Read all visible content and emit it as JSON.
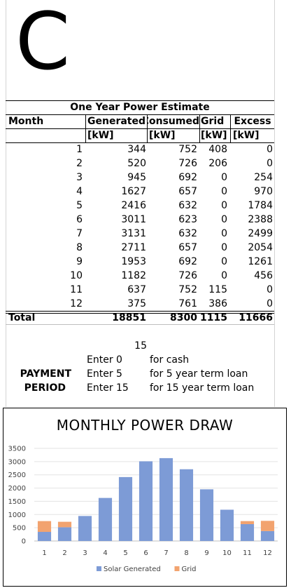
{
  "logo_letter": "C",
  "table": {
    "title": "One Year Power Estimate",
    "headers": [
      "Month",
      "Generated",
      "Consumed",
      "Grid",
      "Excess"
    ],
    "units": [
      "",
      "[kW]",
      "[kW]",
      "[kW]",
      "[kW]"
    ],
    "rows": [
      {
        "month": "1",
        "generated": "344",
        "consumed": "752",
        "grid": "408",
        "excess": "0"
      },
      {
        "month": "2",
        "generated": "520",
        "consumed": "726",
        "grid": "206",
        "excess": "0"
      },
      {
        "month": "3",
        "generated": "945",
        "consumed": "692",
        "grid": "0",
        "excess": "254"
      },
      {
        "month": "4",
        "generated": "1627",
        "consumed": "657",
        "grid": "0",
        "excess": "970"
      },
      {
        "month": "5",
        "generated": "2416",
        "consumed": "632",
        "grid": "0",
        "excess": "1784"
      },
      {
        "month": "6",
        "generated": "3011",
        "consumed": "623",
        "grid": "0",
        "excess": "2388"
      },
      {
        "month": "7",
        "generated": "3131",
        "consumed": "632",
        "grid": "0",
        "excess": "2499"
      },
      {
        "month": "8",
        "generated": "2711",
        "consumed": "657",
        "grid": "0",
        "excess": "2054"
      },
      {
        "month": "9",
        "generated": "1953",
        "consumed": "692",
        "grid": "0",
        "excess": "1261"
      },
      {
        "month": "10",
        "generated": "1182",
        "consumed": "726",
        "grid": "0",
        "excess": "456"
      },
      {
        "month": "11",
        "generated": "637",
        "consumed": "752",
        "grid": "115",
        "excess": "0"
      },
      {
        "month": "12",
        "generated": "375",
        "consumed": "761",
        "grid": "386",
        "excess": "0"
      }
    ],
    "total": {
      "label": "Total",
      "generated": "18851",
      "consumed": "8300",
      "grid": "1115",
      "excess": "11666"
    }
  },
  "payment": {
    "value": "15",
    "label_line1": "PAYMENT",
    "label_line2": "PERIOD",
    "options": [
      {
        "enter": "Enter 0",
        "desc": "for cash"
      },
      {
        "enter": "Enter 5",
        "desc": "for 5 year term loan"
      },
      {
        "enter": "Enter 15",
        "desc": "for 15 year term loan"
      }
    ]
  },
  "chart_data": {
    "type": "bar",
    "stacked": true,
    "title": "MONTHLY POWER DRAW",
    "categories": [
      "1",
      "2",
      "3",
      "4",
      "5",
      "6",
      "7",
      "8",
      "9",
      "10",
      "11",
      "12"
    ],
    "series": [
      {
        "name": "Solar Generated",
        "color": "#7d9bd6",
        "values": [
          344,
          520,
          945,
          1627,
          2416,
          3011,
          3131,
          2711,
          1953,
          1182,
          637,
          375
        ]
      },
      {
        "name": "Grid",
        "color": "#f2a36f",
        "values": [
          408,
          206,
          0,
          0,
          0,
          0,
          0,
          0,
          0,
          0,
          115,
          386
        ]
      }
    ],
    "yticks": [
      "0",
      "500",
      "1000",
      "1500",
      "2000",
      "2500",
      "3000",
      "3500"
    ],
    "ylim": [
      0,
      3500
    ],
    "grid": true,
    "legend": "bottom"
  }
}
